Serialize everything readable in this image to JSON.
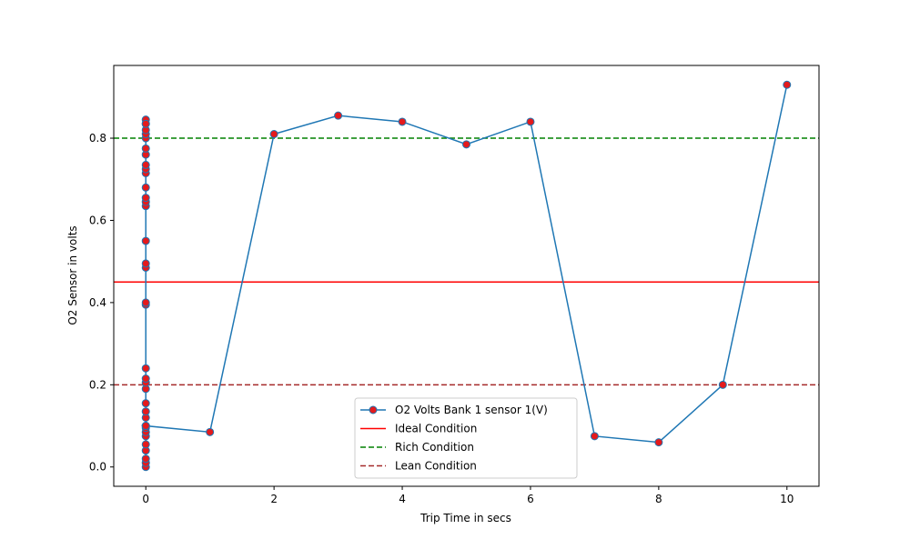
{
  "chart_data": {
    "type": "line",
    "title": "",
    "xlabel": "Trip Time in secs",
    "ylabel": "O2 Sensor in volts",
    "xlim": [
      -0.5,
      10.5
    ],
    "ylim": [
      -0.047,
      0.977
    ],
    "xticks": [
      0,
      2,
      4,
      6,
      8,
      10
    ],
    "yticks": [
      0.0,
      0.2,
      0.4,
      0.6,
      0.8
    ],
    "xtick_labels": [
      "0",
      "2",
      "4",
      "6",
      "8",
      "10"
    ],
    "ytick_labels": [
      "0.0",
      "0.2",
      "0.4",
      "0.6",
      "0.8"
    ],
    "grid": false,
    "legend_position": "lower-center",
    "series": [
      {
        "name": "O2 Volts Bank 1 sensor 1(V)",
        "color": "#1f77b4",
        "marker_color": "#e41a1c",
        "x": [
          0,
          0,
          0,
          0,
          0,
          0,
          0,
          0,
          0,
          0,
          0,
          0,
          0,
          0,
          0,
          0,
          0,
          0,
          0,
          0,
          0,
          0,
          0,
          0,
          0,
          0,
          0,
          0,
          0,
          0,
          0,
          0,
          0,
          0,
          0,
          0,
          0,
          0,
          1,
          2,
          3,
          4,
          5,
          6,
          7,
          8,
          9,
          10
        ],
        "y": [
          0.0,
          0.01,
          0.02,
          0.04,
          0.055,
          0.075,
          0.085,
          0.095,
          0.1,
          0.12,
          0.135,
          0.155,
          0.19,
          0.205,
          0.215,
          0.24,
          0.395,
          0.4,
          0.485,
          0.495,
          0.55,
          0.635,
          0.645,
          0.655,
          0.68,
          0.715,
          0.725,
          0.735,
          0.76,
          0.775,
          0.8,
          0.81,
          0.82,
          0.835,
          0.845,
          0.835,
          0.1,
          0.1,
          0.085,
          0.81,
          0.855,
          0.84,
          0.785,
          0.84,
          0.075,
          0.06,
          0.2,
          0.93
        ]
      }
    ],
    "reference_lines": [
      {
        "name": "Ideal Condition",
        "y": 0.45,
        "color": "#ff0000",
        "style": "solid"
      },
      {
        "name": "Rich Condition",
        "y": 0.8,
        "color": "#008000",
        "style": "dashed"
      },
      {
        "name": "Lean Condition",
        "y": 0.2,
        "color": "#a52a2a",
        "style": "dashed"
      }
    ]
  }
}
